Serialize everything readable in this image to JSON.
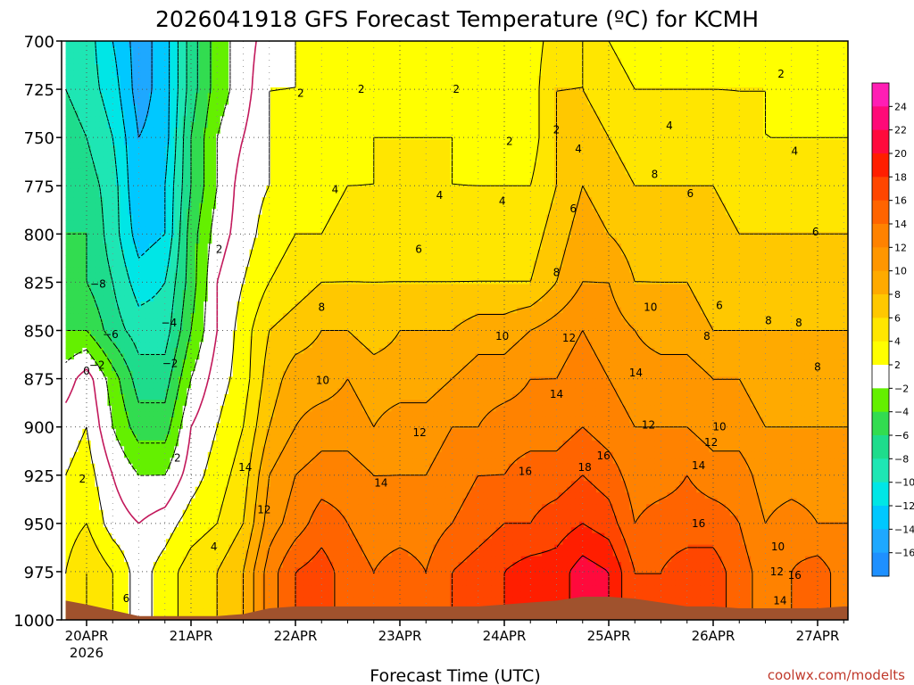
{
  "chart_data": {
    "type": "heatmap",
    "title": "2026041918 GFS Forecast Temperature (ºC) for KCMH",
    "xlabel": "Forecast Time (UTC)",
    "ylabel": "",
    "credit": "coolwx.com/modelts",
    "x_ticks": [
      "20APR",
      "21APR",
      "22APR",
      "23APR",
      "24APR",
      "25APR",
      "26APR",
      "27APR"
    ],
    "x_year_label": "2026",
    "xlim_days": [
      -0.2,
      7.4
    ],
    "y_ticks": [
      700,
      725,
      750,
      775,
      800,
      825,
      850,
      875,
      900,
      925,
      950,
      975,
      1000
    ],
    "ylim_hpa": [
      700,
      1000
    ],
    "colorbar": {
      "labels": [
        "24",
        "22",
        "20",
        "18",
        "16",
        "14",
        "12",
        "10",
        "8",
        "6",
        "4",
        "2",
        "−2",
        "−4",
        "−6",
        "−8",
        "−10",
        "−12",
        "−14",
        "−16"
      ],
      "bins": [
        {
          "lo": -18,
          "hi": -16,
          "color": "#1e90ff"
        },
        {
          "lo": -16,
          "hi": -14,
          "color": "#1ea8ff"
        },
        {
          "lo": -14,
          "hi": -12,
          "color": "#00c8ff"
        },
        {
          "lo": -12,
          "hi": -10,
          "color": "#00e6e6"
        },
        {
          "lo": -10,
          "hi": -8,
          "color": "#1ee6b4"
        },
        {
          "lo": -8,
          "hi": -6,
          "color": "#1edc8c"
        },
        {
          "lo": -6,
          "hi": -4,
          "color": "#32dc50"
        },
        {
          "lo": -4,
          "hi": -2,
          "color": "#64f000"
        },
        {
          "lo": -2,
          "hi": 2,
          "color": "#ffffff"
        },
        {
          "lo": 2,
          "hi": 4,
          "color": "#ffff00"
        },
        {
          "lo": 4,
          "hi": 6,
          "color": "#ffe600"
        },
        {
          "lo": 6,
          "hi": 8,
          "color": "#ffc800"
        },
        {
          "lo": 8,
          "hi": 10,
          "color": "#ffaa00"
        },
        {
          "lo": 10,
          "hi": 12,
          "color": "#ff9600"
        },
        {
          "lo": 12,
          "hi": 14,
          "color": "#ff8200"
        },
        {
          "lo": 14,
          "hi": 16,
          "color": "#ff6400"
        },
        {
          "lo": 16,
          "hi": 18,
          "color": "#ff4600"
        },
        {
          "lo": 18,
          "hi": 20,
          "color": "#ff1e00"
        },
        {
          "lo": 20,
          "hi": 22,
          "color": "#ff0a3c"
        },
        {
          "lo": 22,
          "hi": 24,
          "color": "#ff0a78"
        },
        {
          "lo": 24,
          "hi": 26,
          "color": "#ff1eb4"
        }
      ]
    },
    "pressure_levels": [
      700,
      725,
      750,
      775,
      800,
      825,
      850,
      875,
      900,
      925,
      950,
      975
    ],
    "time_days": [
      -0.2,
      0.0,
      0.25,
      0.5,
      0.75,
      1.0,
      1.25,
      1.5,
      1.75,
      2.0,
      2.25,
      2.5,
      2.75,
      3.0,
      3.25,
      3.5,
      3.75,
      4.0,
      4.25,
      4.5,
      4.75,
      5.0,
      5.25,
      5.5,
      5.75,
      6.0,
      6.25,
      6.5,
      6.75,
      7.0,
      7.25,
      7.4
    ],
    "temperature_c": [
      [
        -9,
        -9,
        -12,
        -15,
        -13,
        -7,
        -3,
        -1,
        1,
        2,
        2,
        2,
        3,
        3,
        3,
        3,
        3,
        3,
        3,
        5,
        6,
        4,
        3,
        3,
        3,
        3,
        3,
        3,
        3,
        2,
        2,
        2
      ],
      [
        -8,
        -9,
        -11,
        -15,
        -13,
        -7,
        -3,
        -1,
        2,
        2,
        2,
        3,
        3,
        3,
        3,
        3,
        3,
        3,
        3,
        6,
        6,
        5,
        4,
        4,
        4,
        4,
        4,
        4,
        3,
        3,
        3,
        3
      ],
      [
        -7,
        -8,
        -10,
        -14,
        -13,
        -6,
        -2,
        0,
        2,
        3,
        3,
        3,
        4,
        4,
        4,
        4,
        3,
        3,
        3,
        6,
        7,
        6,
        5,
        5,
        5,
        5,
        4,
        4,
        4,
        4,
        4,
        4
      ],
      [
        -7,
        -7,
        -9,
        -14,
        -12,
        -6,
        -2,
        1,
        2,
        3,
        3,
        4,
        4,
        4,
        4,
        4,
        4,
        4,
        4,
        6,
        8,
        7,
        6,
        6,
        6,
        6,
        5,
        5,
        5,
        5,
        5,
        5
      ],
      [
        -6,
        -6,
        -9,
        -13,
        -12,
        -5,
        -1,
        1,
        3,
        4,
        4,
        5,
        5,
        5,
        5,
        5,
        5,
        5,
        5,
        7,
        9,
        8,
        7,
        7,
        7,
        7,
        6,
        6,
        6,
        6,
        6,
        6
      ],
      [
        -6,
        -6,
        -8,
        -11,
        -10,
        -5,
        0,
        2,
        4,
        5,
        6,
        6,
        6,
        6,
        6,
        6,
        6,
        6,
        6,
        8,
        10,
        10,
        8,
        8,
        8,
        7,
        7,
        7,
        7,
        7,
        7,
        7
      ],
      [
        -4,
        -4,
        -7,
        -9,
        -9,
        -4,
        0,
        3,
        6,
        7,
        8,
        8,
        7,
        8,
        8,
        8,
        9,
        9,
        10,
        11,
        12,
        11,
        10,
        9,
        9,
        8,
        8,
        8,
        8,
        8,
        8,
        8
      ],
      [
        -1,
        1,
        -3,
        -7,
        -7,
        -2,
        1,
        3,
        7,
        9,
        9,
        10,
        9,
        9,
        9,
        10,
        11,
        11,
        12,
        12,
        13,
        12,
        11,
        11,
        11,
        10,
        10,
        9,
        9,
        9,
        9,
        9
      ],
      [
        1,
        2,
        -2,
        -5,
        -5,
        0,
        2,
        4,
        8,
        10,
        11,
        11,
        10,
        11,
        11,
        12,
        12,
        13,
        13,
        13,
        14,
        13,
        12,
        12,
        12,
        11,
        11,
        10,
        10,
        10,
        10,
        10
      ],
      [
        2,
        3,
        0,
        -2,
        -2,
        1,
        3,
        5,
        10,
        12,
        13,
        13,
        12,
        12,
        12,
        13,
        14,
        14,
        15,
        15,
        16,
        15,
        13,
        13,
        14,
        13,
        13,
        11,
        11,
        11,
        11,
        11
      ],
      [
        3,
        4,
        1,
        0,
        1,
        3,
        4,
        6,
        11,
        13,
        15,
        14,
        13,
        13,
        13,
        14,
        15,
        16,
        16,
        17,
        18,
        17,
        14,
        15,
        15,
        15,
        14,
        12,
        13,
        12,
        12,
        12
      ],
      [
        4,
        6,
        4,
        1,
        3,
        5,
        6,
        8,
        13,
        16,
        17,
        15,
        14,
        15,
        14,
        16,
        17,
        18,
        19,
        19,
        21,
        20,
        16,
        16,
        17,
        17,
        15,
        13,
        14,
        15,
        13,
        13
      ]
    ],
    "surface_pressure_hpa": [
      990,
      992,
      995,
      998,
      998,
      998,
      998,
      997,
      994,
      993,
      993,
      993,
      993,
      993,
      993,
      993,
      993,
      992,
      991,
      990,
      988,
      988,
      989,
      991,
      993,
      993,
      994,
      994,
      994,
      994,
      993,
      993
    ],
    "contour_labels": [
      {
        "t": 2.05,
        "p": 727,
        "text": "2"
      },
      {
        "t": 2.63,
        "p": 725,
        "text": "2"
      },
      {
        "t": 3.54,
        "p": 725,
        "text": "2"
      },
      {
        "t": 4.05,
        "p": 752,
        "text": "2"
      },
      {
        "t": 4.5,
        "p": 746,
        "text": "2"
      },
      {
        "t": 6.65,
        "p": 717,
        "text": "2"
      },
      {
        "t": 1.27,
        "p": 808,
        "text": "2"
      },
      {
        "t": 0.87,
        "p": 916,
        "text": "2"
      },
      {
        "t": -0.04,
        "p": 927,
        "text": "2"
      },
      {
        "t": 0.0,
        "p": 871,
        "text": "0"
      },
      {
        "t": 0.1,
        "p": 868,
        "text": "−2"
      },
      {
        "t": 0.11,
        "p": 826,
        "text": "−8"
      },
      {
        "t": 0.23,
        "p": 852,
        "text": "−6"
      },
      {
        "t": 0.79,
        "p": 846,
        "text": "−4"
      },
      {
        "t": 0.8,
        "p": 867,
        "text": "−2"
      },
      {
        "t": 2.38,
        "p": 777,
        "text": "4"
      },
      {
        "t": 3.38,
        "p": 780,
        "text": "4"
      },
      {
        "t": 3.98,
        "p": 783,
        "text": "4"
      },
      {
        "t": 4.71,
        "p": 756,
        "text": "4"
      },
      {
        "t": 5.58,
        "p": 744,
        "text": "4"
      },
      {
        "t": 6.78,
        "p": 757,
        "text": "4"
      },
      {
        "t": 1.22,
        "p": 962,
        "text": "4"
      },
      {
        "t": 3.18,
        "p": 808,
        "text": "6"
      },
      {
        "t": 4.66,
        "p": 787,
        "text": "6"
      },
      {
        "t": 5.78,
        "p": 779,
        "text": "6"
      },
      {
        "t": 6.98,
        "p": 799,
        "text": "6"
      },
      {
        "t": 6.06,
        "p": 837,
        "text": "6"
      },
      {
        "t": 2.25,
        "p": 838,
        "text": "8"
      },
      {
        "t": 4.5,
        "p": 820,
        "text": "8"
      },
      {
        "t": 5.44,
        "p": 769,
        "text": "8"
      },
      {
        "t": 5.94,
        "p": 853,
        "text": "8"
      },
      {
        "t": 6.53,
        "p": 845,
        "text": "8"
      },
      {
        "t": 6.82,
        "p": 846,
        "text": "8"
      },
      {
        "t": 7.0,
        "p": 869,
        "text": "8"
      },
      {
        "t": 2.26,
        "p": 876,
        "text": "10"
      },
      {
        "t": 3.98,
        "p": 853,
        "text": "10"
      },
      {
        "t": 5.4,
        "p": 838,
        "text": "10"
      },
      {
        "t": 6.06,
        "p": 900,
        "text": "10"
      },
      {
        "t": 6.62,
        "p": 962,
        "text": "10"
      },
      {
        "t": 1.7,
        "p": 943,
        "text": "12"
      },
      {
        "t": 3.19,
        "p": 903,
        "text": "12"
      },
      {
        "t": 4.62,
        "p": 854,
        "text": "12"
      },
      {
        "t": 5.38,
        "p": 899,
        "text": "12"
      },
      {
        "t": 5.98,
        "p": 908,
        "text": "12"
      },
      {
        "t": 6.61,
        "p": 975,
        "text": "12"
      },
      {
        "t": 1.52,
        "p": 921,
        "text": "14"
      },
      {
        "t": 2.82,
        "p": 929,
        "text": "14"
      },
      {
        "t": 4.5,
        "p": 883,
        "text": "14"
      },
      {
        "t": 5.26,
        "p": 872,
        "text": "14"
      },
      {
        "t": 5.86,
        "p": 920,
        "text": "14"
      },
      {
        "t": 6.64,
        "p": 990,
        "text": "14"
      },
      {
        "t": 4.2,
        "p": 923,
        "text": "16"
      },
      {
        "t": 4.95,
        "p": 915,
        "text": "16"
      },
      {
        "t": 5.86,
        "p": 950,
        "text": "16"
      },
      {
        "t": 6.78,
        "p": 977,
        "text": "16"
      },
      {
        "t": 4.77,
        "p": 921,
        "text": "18"
      },
      {
        "t": 0.38,
        "p": 989,
        "text": "6"
      }
    ]
  }
}
